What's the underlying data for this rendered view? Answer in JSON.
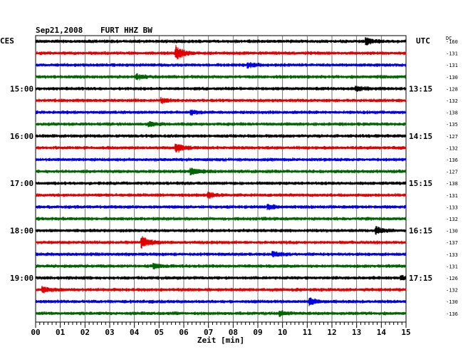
{
  "header": {
    "date": "Sep21,2008",
    "station": "FURT HHZ BW"
  },
  "labels": {
    "left_tz": "CES",
    "right_tz": "UTC",
    "dc": "DC",
    "xlabel": "Zeit [min]"
  },
  "colors": [
    "#000000",
    "#e00000",
    "#0000e0",
    "#006400"
  ],
  "chart_data": {
    "type": "line",
    "title": "Sep21,2008   FURT HHZ BW",
    "xlabel": "Zeit [min]",
    "xlim": [
      0,
      15
    ],
    "x_ticks": [
      "00",
      "01",
      "02",
      "03",
      "04",
      "05",
      "06",
      "07",
      "08",
      "09",
      "10",
      "11",
      "12",
      "13",
      "14",
      "15"
    ],
    "grid": "vertical",
    "left_time_labels": [
      {
        "row": 4,
        "label": "15:00"
      },
      {
        "row": 8,
        "label": "16:00"
      },
      {
        "row": 12,
        "label": "17:00"
      },
      {
        "row": 16,
        "label": "18:00"
      },
      {
        "row": 20,
        "label": "19:00"
      }
    ],
    "right_time_labels": [
      {
        "row": 4,
        "label": "13:15"
      },
      {
        "row": 8,
        "label": "14:15"
      },
      {
        "row": 12,
        "label": "15:15"
      },
      {
        "row": 16,
        "label": "16:15"
      },
      {
        "row": 20,
        "label": "17:15"
      }
    ],
    "dc_offsets": [
      -160,
      -131,
      -131,
      -130,
      -128,
      -132,
      -138,
      -135,
      -127,
      -132,
      -136,
      -127,
      -138,
      -131,
      -133,
      -132,
      -130,
      -137,
      -133,
      -131,
      -126,
      -132,
      -130,
      -136
    ],
    "events": [
      {
        "row": 1,
        "minute": 5.7,
        "amplitude": 1.0
      },
      {
        "row": 2,
        "minute": 8.6,
        "amplitude": 0.35
      },
      {
        "row": 3,
        "minute": 4.1,
        "amplitude": 0.35
      },
      {
        "row": 5,
        "minute": 5.1,
        "amplitude": 0.3
      },
      {
        "row": 6,
        "minute": 6.3,
        "amplitude": 0.3
      },
      {
        "row": 7,
        "minute": 4.6,
        "amplitude": 0.3
      },
      {
        "row": 9,
        "minute": 5.7,
        "amplitude": 0.7
      },
      {
        "row": 11,
        "minute": 6.3,
        "amplitude": 0.5
      },
      {
        "row": 13,
        "minute": 7.0,
        "amplitude": 0.4
      },
      {
        "row": 14,
        "minute": 9.4,
        "amplitude": 0.35
      },
      {
        "row": 17,
        "minute": 4.3,
        "amplitude": 0.9
      },
      {
        "row": 18,
        "minute": 9.6,
        "amplitude": 0.35
      },
      {
        "row": 19,
        "minute": 4.8,
        "amplitude": 0.3
      },
      {
        "row": 21,
        "minute": 0.3,
        "amplitude": 0.4
      },
      {
        "row": 22,
        "minute": 11.1,
        "amplitude": 0.5
      },
      {
        "row": 23,
        "minute": 9.9,
        "amplitude": 0.35
      },
      {
        "row": 0,
        "minute": 13.4,
        "amplitude": 0.45
      },
      {
        "row": 16,
        "minute": 13.8,
        "amplitude": 0.5
      },
      {
        "row": 4,
        "minute": 13.0,
        "amplitude": 0.3
      },
      {
        "row": 20,
        "minute": 14.8,
        "amplitude": 0.3
      }
    ],
    "rows": 24
  }
}
